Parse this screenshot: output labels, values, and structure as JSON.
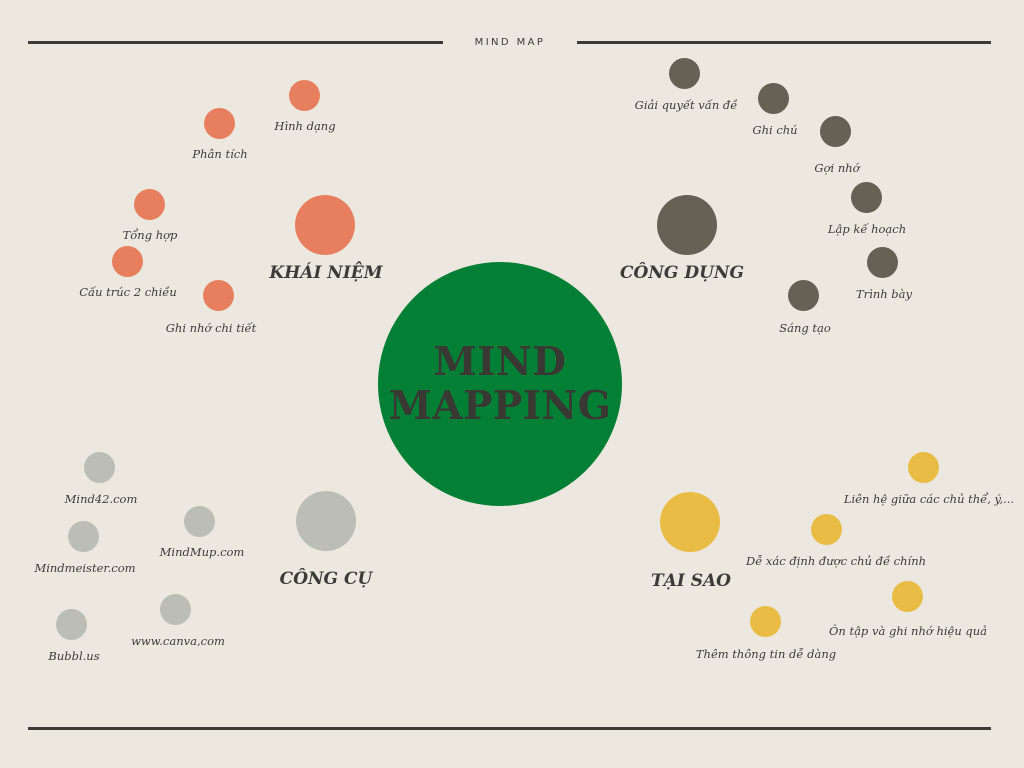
{
  "header": {
    "title": "MIND MAP"
  },
  "center": {
    "title": "MIND\nMAPPING",
    "color": "#038035"
  },
  "branches": [
    {
      "key": "khai-niem",
      "title": "KHÁI NIỆM",
      "color": "#e77f5e",
      "items": [
        "Hình dạng",
        "Phân tích",
        "Tổng hợp",
        "Cấu trúc 2 chiều",
        "Ghi nhớ chi tiết"
      ]
    },
    {
      "key": "cong-dung",
      "title": "CÔNG DỤNG",
      "color": "#676054",
      "items": [
        "Giải quyết vấn đề",
        "Ghi chú",
        "Gợi nhớ",
        "Lập kế hoạch",
        "Trình bày",
        "Sáng tạo"
      ]
    },
    {
      "key": "cong-cu",
      "title": "CÔNG CỤ",
      "color": "#bcbdb4",
      "items": [
        "Mind42.com",
        "MindMup.com",
        "Mindmeister.com",
        "www.canva,com",
        "Bubbl.us"
      ]
    },
    {
      "key": "tai-sao",
      "title": "TẠI SAO",
      "color": "#e9bd45",
      "items": [
        "Liên hệ giữa các chủ thể, ý,...",
        "Dễ xác định được chủ đề chính",
        "Ôn tập và ghi nhớ hiệu quả",
        "Thêm thông tin dễ dàng"
      ]
    }
  ]
}
